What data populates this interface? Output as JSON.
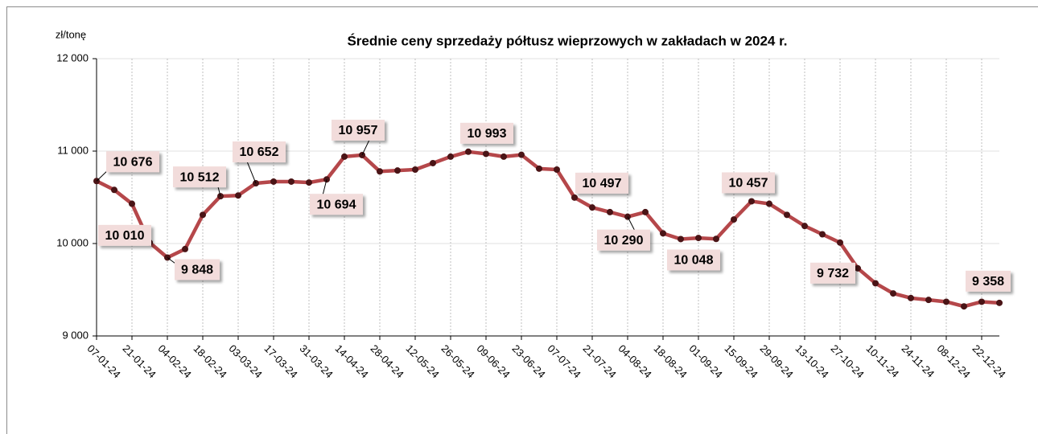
{
  "chart_data": {
    "type": "line",
    "title": "Średnie ceny sprzedaży półtusz wieprzowych w zakładach w 2024 r.",
    "y_axis_label": "zł/tonę",
    "categories": [
      "07-01-24",
      null,
      "21-01-24",
      null,
      "04-02-24",
      null,
      "18-02-24",
      null,
      "03-03-24",
      null,
      "17-03-24",
      null,
      "31-03-24",
      null,
      "14-04-24",
      null,
      "28-04-24",
      null,
      "12-05-24",
      null,
      "26-05-24",
      null,
      "09-06-24",
      null,
      "23-06-24",
      null,
      "07-07-24",
      null,
      "21-07-24",
      null,
      "04-08-24",
      null,
      "18-08-24",
      null,
      "01-09-24",
      null,
      "15-09-24",
      null,
      "29-09-24",
      null,
      "13-10-24",
      null,
      "27-10-24",
      null,
      "10-11-24",
      null,
      "24-11-24",
      null,
      "08-12-24",
      null,
      "22-12-24",
      null
    ],
    "series": [
      {
        "name": "Średnie ceny",
        "color": "#b5474a",
        "values": [
          10676,
          10580,
          10430,
          10010,
          9848,
          9940,
          10310,
          10512,
          10520,
          10652,
          10670,
          10670,
          10660,
          10694,
          10940,
          10957,
          10780,
          10790,
          10800,
          10870,
          10940,
          10993,
          10970,
          10940,
          10960,
          10810,
          10800,
          10497,
          10390,
          10340,
          10290,
          10340,
          10110,
          10048,
          10060,
          10050,
          10260,
          10457,
          10430,
          10310,
          10190,
          10100,
          10010,
          9732,
          9570,
          9460,
          9410,
          9390,
          9370,
          9320,
          9370,
          9358
        ],
        "value_labels": [
          "10 676",
          null,
          null,
          "10 010",
          "9 848",
          null,
          null,
          "10 512",
          null,
          "10 652",
          null,
          null,
          null,
          "10 694",
          null,
          "10 957",
          null,
          null,
          null,
          null,
          null,
          "10 993",
          null,
          null,
          null,
          null,
          null,
          "10 497",
          null,
          null,
          "10 290",
          null,
          null,
          "10 048",
          null,
          null,
          null,
          "10 457",
          null,
          null,
          null,
          null,
          null,
          "9 732",
          null,
          null,
          null,
          null,
          null,
          null,
          null,
          "9 358"
        ]
      }
    ],
    "ylim": [
      9000,
      12000
    ],
    "yticks": [
      {
        "value": 9000,
        "label": "9 000"
      },
      {
        "value": 10000,
        "label": "10 000"
      },
      {
        "value": 11000,
        "label": "11 000"
      },
      {
        "value": 12000,
        "label": "12 000"
      }
    ],
    "grid": true
  }
}
